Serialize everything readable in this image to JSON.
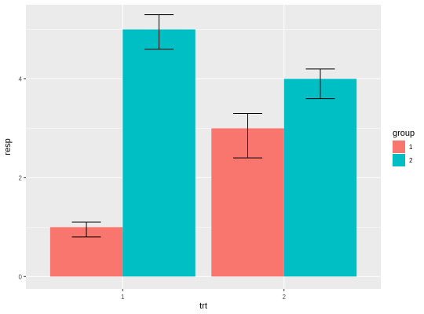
{
  "chart_data": {
    "type": "bar",
    "title": "",
    "xlabel": "trt",
    "ylabel": "resp",
    "categories": [
      "1",
      "2"
    ],
    "ylim": [
      -0.25,
      5.5
    ],
    "yticks": [
      "0",
      "2",
      "4"
    ],
    "ytick_values": [
      0,
      2,
      4
    ],
    "grid": true,
    "legend": {
      "title": "group",
      "position": "right"
    },
    "series": [
      {
        "name": "1",
        "color": "#F8766D",
        "values": [
          1,
          3
        ],
        "lower": [
          0.8,
          2.4
        ],
        "upper": [
          1.1,
          3.3
        ]
      },
      {
        "name": "2",
        "color": "#00BFC4",
        "values": [
          5,
          4
        ],
        "lower": [
          4.6,
          3.6
        ],
        "upper": [
          5.3,
          4.2
        ]
      }
    ]
  }
}
